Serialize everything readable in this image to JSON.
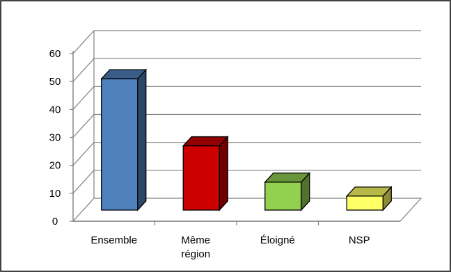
{
  "chart_data": {
    "type": "bar",
    "style": "3d-column",
    "categories": [
      [
        "Ensemble"
      ],
      [
        "Même",
        "région"
      ],
      [
        "Éloigné"
      ],
      [
        "NSP"
      ]
    ],
    "values": [
      51,
      27,
      14,
      9
    ],
    "ylim": [
      0,
      60
    ],
    "yticks": [
      0,
      10,
      20,
      30,
      40,
      50,
      60
    ],
    "grid": true,
    "legend": "none",
    "colors": {
      "bars": [
        "#4F81BD",
        "#CC0000",
        "#92D050",
        "#FFFF66"
      ],
      "gridline": "#808080",
      "frame": "#000000"
    }
  }
}
